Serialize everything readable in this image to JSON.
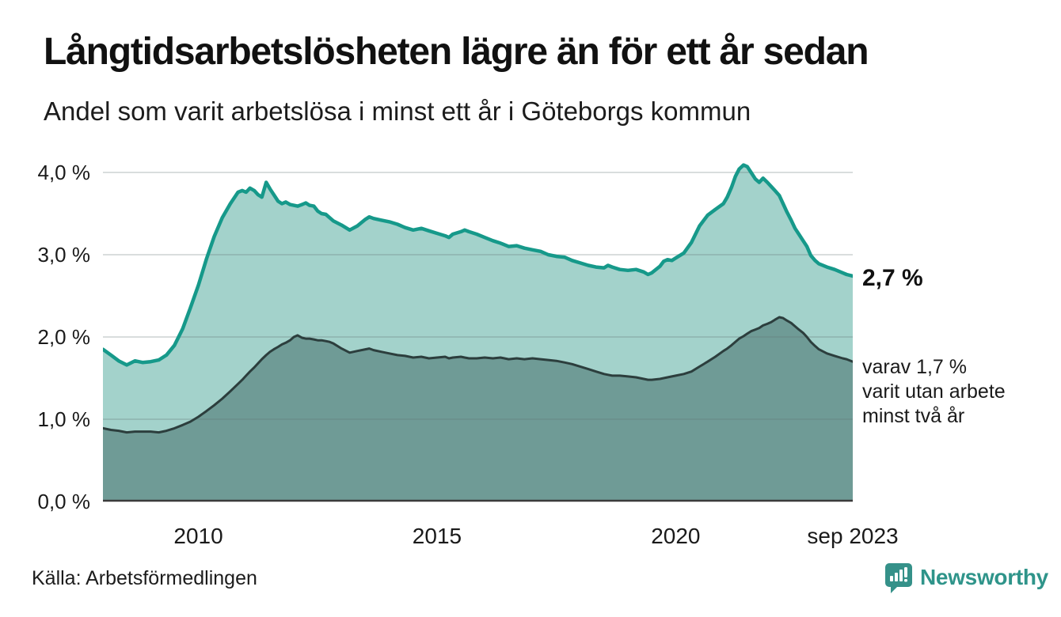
{
  "chart_data": {
    "type": "area",
    "title": "Långtidsarbetslösheten lägre än för ett år sedan",
    "subtitle": "Andel som varit arbetslösa i minst ett år i Göteborgs kommun",
    "xlabel": "",
    "ylabel": "",
    "unit": "%",
    "grid": "horizontal",
    "ylim": [
      0,
      4.2
    ],
    "x_is_decimal_year": true,
    "x": [
      2008.0,
      2008.17,
      2008.33,
      2008.5,
      2008.67,
      2008.83,
      2009.0,
      2009.17,
      2009.33,
      2009.5,
      2009.67,
      2009.83,
      2010.0,
      2010.17,
      2010.33,
      2010.5,
      2010.67,
      2010.83,
      2010.92,
      2011.0,
      2011.08,
      2011.17,
      2011.25,
      2011.33,
      2011.42,
      2011.5,
      2011.58,
      2011.67,
      2011.75,
      2011.83,
      2011.92,
      2012.0,
      2012.08,
      2012.17,
      2012.25,
      2012.33,
      2012.42,
      2012.5,
      2012.58,
      2012.67,
      2012.75,
      2012.83,
      2013.0,
      2013.17,
      2013.33,
      2013.5,
      2013.58,
      2013.67,
      2013.83,
      2014.0,
      2014.17,
      2014.33,
      2014.5,
      2014.67,
      2014.83,
      2015.0,
      2015.17,
      2015.25,
      2015.33,
      2015.5,
      2015.58,
      2015.67,
      2015.83,
      2016.0,
      2016.17,
      2016.33,
      2016.5,
      2016.67,
      2016.83,
      2017.0,
      2017.17,
      2017.33,
      2017.5,
      2017.67,
      2017.83,
      2018.0,
      2018.17,
      2018.33,
      2018.5,
      2018.58,
      2018.67,
      2018.83,
      2019.0,
      2019.17,
      2019.33,
      2019.42,
      2019.5,
      2019.67,
      2019.75,
      2019.83,
      2019.92,
      2020.0,
      2020.17,
      2020.33,
      2020.5,
      2020.67,
      2020.83,
      2021.0,
      2021.08,
      2021.17,
      2021.25,
      2021.33,
      2021.42,
      2021.5,
      2021.58,
      2021.67,
      2021.75,
      2021.83,
      2021.92,
      2022.0,
      2022.08,
      2022.17,
      2022.25,
      2022.33,
      2022.42,
      2022.5,
      2022.58,
      2022.67,
      2022.75,
      2022.83,
      2022.92,
      2023.0,
      2023.17,
      2023.33,
      2023.5,
      2023.58,
      2023.71
    ],
    "series": [
      {
        "name": "Andel arbetslösa minst ett år",
        "line_color": "#16998a",
        "fill_color": "#a3d2cb",
        "line_width": 4.5,
        "values": [
          1.85,
          1.78,
          1.71,
          1.66,
          1.71,
          1.69,
          1.7,
          1.72,
          1.78,
          1.9,
          2.1,
          2.35,
          2.63,
          2.95,
          3.22,
          3.45,
          3.62,
          3.76,
          3.78,
          3.76,
          3.81,
          3.78,
          3.73,
          3.7,
          3.88,
          3.8,
          3.73,
          3.65,
          3.62,
          3.64,
          3.61,
          3.6,
          3.59,
          3.61,
          3.63,
          3.6,
          3.59,
          3.53,
          3.5,
          3.49,
          3.45,
          3.41,
          3.36,
          3.3,
          3.35,
          3.43,
          3.46,
          3.44,
          3.42,
          3.4,
          3.37,
          3.33,
          3.3,
          3.32,
          3.29,
          3.26,
          3.23,
          3.21,
          3.25,
          3.28,
          3.3,
          3.28,
          3.25,
          3.21,
          3.17,
          3.14,
          3.1,
          3.11,
          3.08,
          3.06,
          3.04,
          3.0,
          2.98,
          2.97,
          2.93,
          2.9,
          2.87,
          2.85,
          2.84,
          2.87,
          2.85,
          2.82,
          2.81,
          2.82,
          2.79,
          2.76,
          2.78,
          2.86,
          2.92,
          2.94,
          2.93,
          2.96,
          3.02,
          3.15,
          3.35,
          3.48,
          3.55,
          3.62,
          3.7,
          3.82,
          3.95,
          4.04,
          4.09,
          4.07,
          4.0,
          3.92,
          3.88,
          3.93,
          3.88,
          3.83,
          3.78,
          3.72,
          3.62,
          3.52,
          3.42,
          3.32,
          3.25,
          3.17,
          3.1,
          2.99,
          2.93,
          2.89,
          2.85,
          2.82,
          2.78,
          2.76,
          2.74
        ]
      },
      {
        "name": "varav arbetslösa minst två år",
        "line_color": "#2c3e3d",
        "fill_color": "#6f9b96",
        "line_width": 3,
        "values": [
          0.89,
          0.87,
          0.86,
          0.84,
          0.85,
          0.85,
          0.85,
          0.84,
          0.86,
          0.89,
          0.93,
          0.97,
          1.03,
          1.1,
          1.17,
          1.25,
          1.34,
          1.43,
          1.48,
          1.53,
          1.58,
          1.63,
          1.68,
          1.73,
          1.78,
          1.82,
          1.85,
          1.88,
          1.91,
          1.93,
          1.96,
          2.0,
          2.02,
          1.99,
          1.98,
          1.98,
          1.97,
          1.96,
          1.96,
          1.95,
          1.94,
          1.92,
          1.86,
          1.81,
          1.83,
          1.85,
          1.86,
          1.84,
          1.82,
          1.8,
          1.78,
          1.77,
          1.75,
          1.76,
          1.74,
          1.75,
          1.76,
          1.74,
          1.75,
          1.76,
          1.75,
          1.74,
          1.74,
          1.75,
          1.74,
          1.75,
          1.73,
          1.74,
          1.73,
          1.74,
          1.73,
          1.72,
          1.71,
          1.69,
          1.67,
          1.64,
          1.61,
          1.58,
          1.55,
          1.54,
          1.53,
          1.53,
          1.52,
          1.51,
          1.49,
          1.48,
          1.48,
          1.49,
          1.5,
          1.51,
          1.52,
          1.53,
          1.55,
          1.58,
          1.64,
          1.7,
          1.76,
          1.83,
          1.86,
          1.9,
          1.94,
          1.98,
          2.01,
          2.04,
          2.07,
          2.09,
          2.11,
          2.14,
          2.16,
          2.18,
          2.21,
          2.24,
          2.23,
          2.2,
          2.17,
          2.13,
          2.09,
          2.05,
          2.0,
          1.94,
          1.89,
          1.85,
          1.8,
          1.77,
          1.74,
          1.73,
          1.7
        ]
      }
    ],
    "yticks": [
      {
        "value": 0,
        "label": "0,0 %"
      },
      {
        "value": 1,
        "label": "1,0 %"
      },
      {
        "value": 2,
        "label": "2,0 %"
      },
      {
        "value": 3,
        "label": "3,0 %"
      },
      {
        "value": 4,
        "label": "4,0 %"
      }
    ],
    "xticks": [
      {
        "value": 2010,
        "label": "2010"
      },
      {
        "value": 2015,
        "label": "2015"
      },
      {
        "value": 2020,
        "label": "2020"
      },
      {
        "value": 2023.71,
        "label": "sep 2023"
      }
    ],
    "annotations": {
      "latest_total": "2,7 %",
      "latest_detail": "varav 1,7 %\nvarit utan arbete\nminst två år"
    },
    "colors": {
      "gridline": "#d9d9d9",
      "axis_line": "#3b3b3b",
      "text": "#1a1a1a",
      "brand": "#2f948a"
    }
  },
  "footer": {
    "source": "Källa: Arbetsförmedlingen",
    "brand": "Newsworthy"
  }
}
